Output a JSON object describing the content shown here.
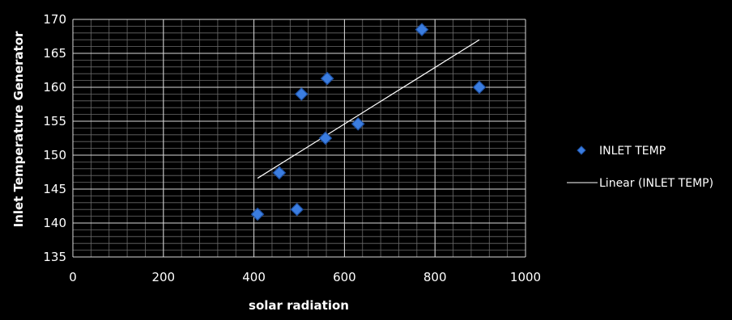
{
  "chart_data": {
    "type": "scatter",
    "xlabel": "solar radiation",
    "ylabel": "Inlet Temperature Generator",
    "xlim": [
      0,
      1000
    ],
    "ylim": [
      135,
      170
    ],
    "x_major_ticks": [
      0,
      200,
      400,
      600,
      800,
      1000
    ],
    "y_major_ticks": [
      135,
      140,
      145,
      150,
      155,
      160,
      165,
      170
    ],
    "x_minor_step": 40,
    "y_minor_step": 1,
    "grid": true,
    "legend_position": "right",
    "series": [
      {
        "name": "INLET TEMP",
        "marker": "diamond",
        "color": "#3b7de0",
        "points": [
          {
            "x": 408,
            "y": 141.3
          },
          {
            "x": 456,
            "y": 147.4
          },
          {
            "x": 495,
            "y": 142.0
          },
          {
            "x": 505,
            "y": 159.0
          },
          {
            "x": 558,
            "y": 152.5
          },
          {
            "x": 562,
            "y": 161.3
          },
          {
            "x": 630,
            "y": 154.6
          },
          {
            "x": 771,
            "y": 168.5
          },
          {
            "x": 898,
            "y": 160.0
          }
        ]
      }
    ],
    "trendline": {
      "name": "Linear (INLET TEMP)",
      "color": "#ffffff",
      "from": {
        "x": 408,
        "y": 146.6
      },
      "to": {
        "x": 898,
        "y": 167.0
      }
    }
  }
}
